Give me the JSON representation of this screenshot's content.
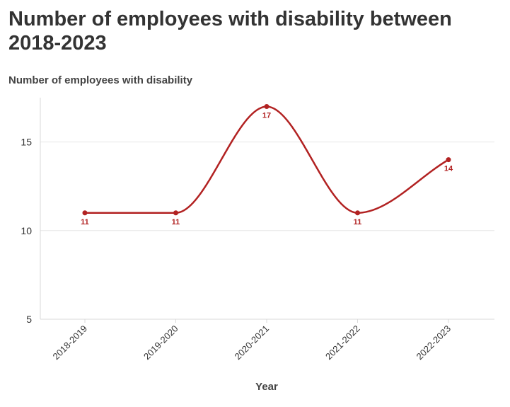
{
  "chart_data": {
    "type": "line",
    "title": "Number of employees with disability between 2018-2023",
    "subtitle": "Number of employees with disability",
    "xlabel": "Year",
    "ylabel": "",
    "categories": [
      "2018-2019",
      "2019-2020",
      "2020-2021",
      "2021-2022",
      "2022-2023"
    ],
    "series": [
      {
        "values": [
          11,
          11,
          17,
          11,
          14
        ]
      }
    ],
    "ylim": [
      5,
      17.5
    ],
    "yticks": [
      5,
      10,
      15
    ],
    "grid": true,
    "smooth": true,
    "colors": {
      "line": "#b22222",
      "grid": "#e6e6e6",
      "axis": "#d9d9d9"
    }
  }
}
